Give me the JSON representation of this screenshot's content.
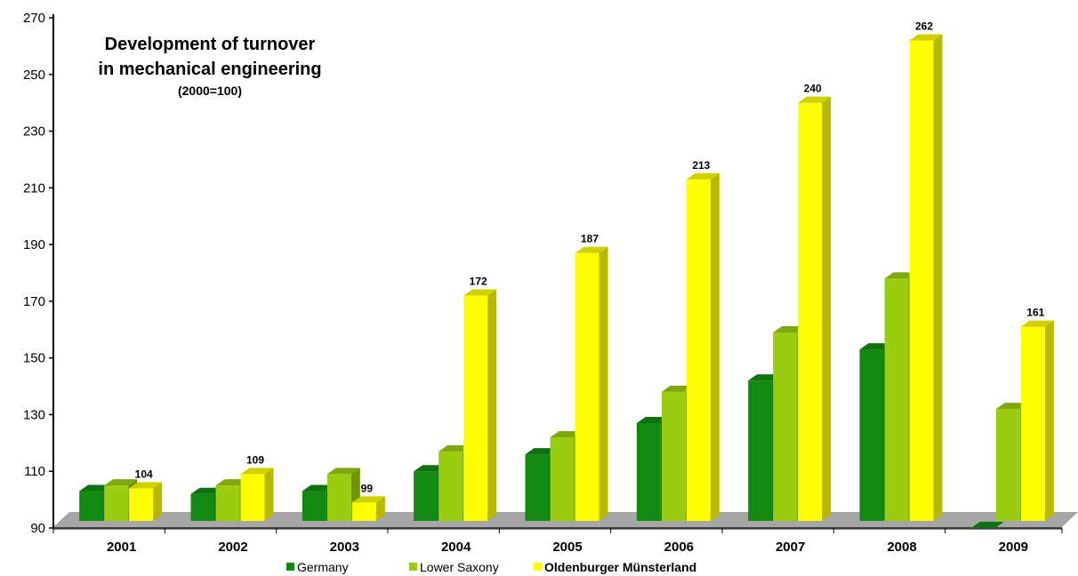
{
  "chart_data": {
    "type": "bar",
    "title_lines": [
      "Development of turnover",
      "in mechanical engineering"
    ],
    "subtitle": "(2000=100)",
    "xlabel": "",
    "ylabel": "",
    "ylim": [
      90,
      270
    ],
    "yticks": [
      90,
      110,
      130,
      150,
      170,
      190,
      210,
      230,
      250,
      270
    ],
    "categories": [
      "2001",
      "2002",
      "2003",
      "2004",
      "2005",
      "2006",
      "2007",
      "2008",
      "2009"
    ],
    "series": [
      {
        "name": "Germany",
        "color": "#128a12",
        "values": [
          103,
          102,
          103,
          110,
          116,
          127,
          142,
          153,
          90
        ]
      },
      {
        "name": "Lower Saxony",
        "color": "#9acd10",
        "values": [
          105,
          105,
          109,
          117,
          122,
          138,
          159,
          178,
          132
        ]
      },
      {
        "name": "Oldenburger Münsterland",
        "color": "#ffff00",
        "values": [
          104,
          109,
          99,
          172,
          187,
          213,
          240,
          262,
          161
        ],
        "labels": [
          "104",
          "109",
          "99",
          "172",
          "187",
          "213",
          "240",
          "262",
          "161"
        ]
      }
    ],
    "legend_position": "bottom",
    "grid": false
  }
}
